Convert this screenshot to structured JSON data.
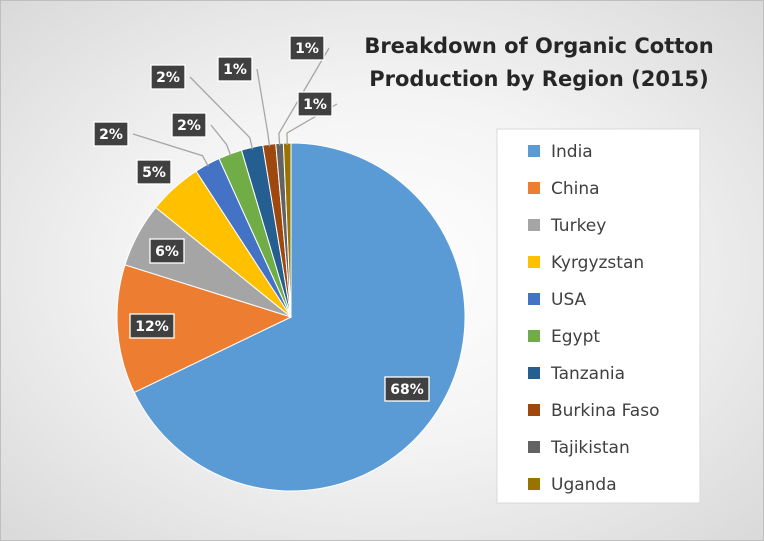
{
  "chart_data": {
    "type": "pie",
    "title": "Breakdown of Organic Cotton Production by Region (2015)",
    "title_lines": [
      "Breakdown of Organic Cotton",
      "Production by Region (2015)"
    ],
    "legend_position": "right",
    "slices": [
      {
        "name": "India",
        "value": 68,
        "label": "68%",
        "color": "#5b9bd5"
      },
      {
        "name": "China",
        "value": 12,
        "label": "12%",
        "color": "#ed7d31"
      },
      {
        "name": "Turkey",
        "value": 6,
        "label": "6%",
        "color": "#a5a5a5"
      },
      {
        "name": "Kyrgyzstan",
        "value": 5,
        "label": "5%",
        "color": "#ffc000"
      },
      {
        "name": "USA",
        "value": 2.4,
        "label": "2%",
        "color": "#4472c4"
      },
      {
        "name": "Egypt",
        "value": 2.2,
        "label": "2%",
        "color": "#70ad47"
      },
      {
        "name": "Tanzania",
        "value": 2,
        "label": "2%",
        "color": "#255e91"
      },
      {
        "name": "Burkina Faso",
        "value": 1.2,
        "label": "1%",
        "color": "#9e480e"
      },
      {
        "name": "Tajikistan",
        "value": 0.7,
        "label": "1%",
        "color": "#636363"
      },
      {
        "name": "Uganda",
        "value": 0.7,
        "label": "1%",
        "color": "#997300"
      }
    ]
  }
}
